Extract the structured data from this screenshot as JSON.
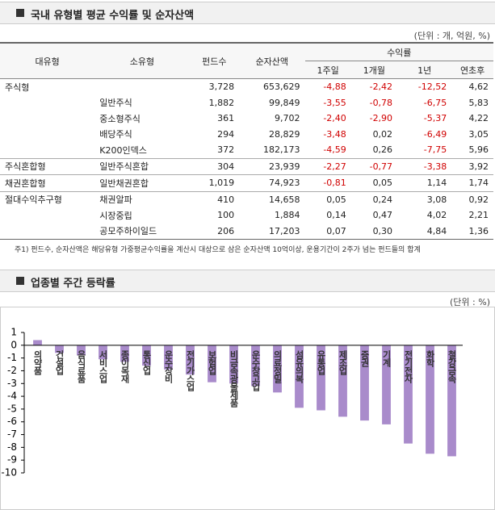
{
  "table": {
    "title": "국내 유형별 평균 수익률 및 순자산액",
    "unit": "(단위 : 개, 억원, %)",
    "header": {
      "main": [
        "대유형",
        "소유형",
        "펀드수",
        "순자산액"
      ],
      "group": "수익률",
      "sub": [
        "1주일",
        "1개월",
        "1년",
        "연초후"
      ]
    },
    "rows": [
      [
        "주식형",
        null,
        "3,728",
        "653,629",
        "-4,88",
        "-2,42",
        "-12,52",
        "4,62"
      ],
      [
        null,
        "일반주식",
        "1,882",
        "99,849",
        "-3,55",
        "-0,78",
        "-6,75",
        "5,83"
      ],
      [
        null,
        "중소형주식",
        "361",
        "9,702",
        "-2,40",
        "-2,90",
        "-5,37",
        "4,22"
      ],
      [
        null,
        "배당주식",
        "294",
        "28,829",
        "-3,48",
        "0,02",
        "-6,49",
        "3,05"
      ],
      [
        null,
        "K200인덱스",
        "372",
        "182,173",
        "-4,59",
        "0,26",
        "-7,75",
        "5,96"
      ],
      [
        "주식혼합형",
        "일반주식혼합",
        "304",
        "23,939",
        "-2,27",
        "-0,77",
        "-3,38",
        "3,92"
      ],
      [
        "채권혼합형",
        "일반채권혼합",
        "1,019",
        "74,923",
        "-0,81",
        "0,05",
        "1,14",
        "1,74"
      ],
      [
        "절대수익추구형",
        "채권알파",
        "410",
        "14,658",
        "0,05",
        "0,24",
        "3,08",
        "0,92"
      ],
      [
        null,
        "시장중립",
        "100",
        "1,884",
        "0,14",
        "0,47",
        "4,02",
        "2,21"
      ],
      [
        null,
        "공모주하이일드",
        "206",
        "17,203",
        "0,07",
        "0,30",
        "4,84",
        "1,36"
      ]
    ],
    "note": "주1) 펀드수, 순자산액은 해당유형 가중평균수익률을 계산시 대상으로 삼은 순자산액 10억이상, 운용기간이 2주가 넘는 펀드들의 합계"
  },
  "chart_data": {
    "type": "bar",
    "title": "업종별 주간 등락률",
    "unit": "(단위 : %)",
    "categories": [
      "의약품",
      "건설업",
      "음식료품",
      "서비스업",
      "종이목재",
      "통신업",
      "운수장비",
      "전기가스업",
      "보험업",
      "비금속광물제품",
      "운수창고업",
      "의료정밀",
      "섬유의복",
      "유통업",
      "제조업",
      "증권",
      "기계",
      "전기전자",
      "화학",
      "철강금속"
    ],
    "values": [
      0.4,
      -0.6,
      -0.8,
      -1.1,
      -1.3,
      -1.6,
      -1.9,
      -2.3,
      -2.9,
      -3.0,
      -3.2,
      -3.7,
      -4.9,
      -5.1,
      -5.6,
      -5.9,
      -6.2,
      -7.7,
      -8.5,
      -8.7
    ],
    "color": "#a98bcb",
    "ylim": [
      -10,
      1
    ],
    "yticks": [
      1,
      0,
      -1,
      -2,
      -3,
      -4,
      -5,
      -6,
      -7,
      -8,
      -9,
      -10
    ],
    "grid": false
  }
}
